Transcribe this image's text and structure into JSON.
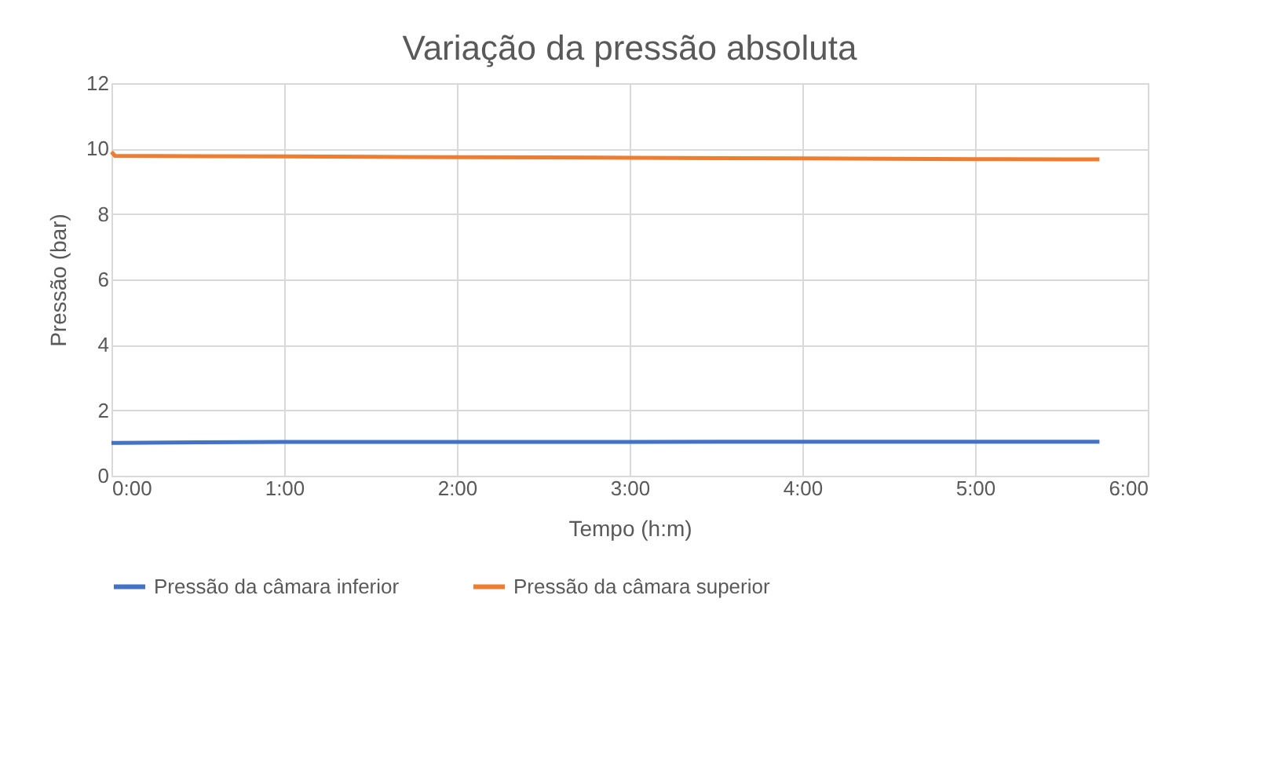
{
  "chart_data": {
    "type": "line",
    "title": "Variação da pressão absoluta",
    "xlabel": "Tempo (h:m)",
    "ylabel": "Pressão (bar)",
    "x": [
      0,
      0.02,
      0.5,
      1,
      1.5,
      2,
      2.5,
      3,
      3.5,
      4,
      4.5,
      5,
      5.5,
      5.72
    ],
    "series": [
      {
        "name": "Pressão da câmara inferior",
        "color": "#4472c4",
        "values": [
          1.0,
          1.0,
          1.02,
          1.03,
          1.03,
          1.03,
          1.03,
          1.03,
          1.04,
          1.04,
          1.04,
          1.04,
          1.04,
          1.04
        ]
      },
      {
        "name": "Pressão da câmara superior",
        "color": "#ed7d31",
        "values": [
          9.9,
          9.78,
          9.77,
          9.76,
          9.75,
          9.74,
          9.73,
          9.72,
          9.71,
          9.7,
          9.69,
          9.68,
          9.67,
          9.67
        ]
      }
    ],
    "xlim": [
      0,
      6
    ],
    "xticks": [
      {
        "value": 0,
        "label": "0:00"
      },
      {
        "value": 1,
        "label": "1:00"
      },
      {
        "value": 2,
        "label": "2:00"
      },
      {
        "value": 3,
        "label": "3:00"
      },
      {
        "value": 4,
        "label": "4:00"
      },
      {
        "value": 5,
        "label": "5:00"
      },
      {
        "value": 6,
        "label": "6:00"
      }
    ],
    "ylim": [
      0,
      12
    ],
    "yticks": [
      0,
      2,
      4,
      6,
      8,
      10,
      12
    ],
    "grid": true,
    "legend": "bottom",
    "marker": "none",
    "line_style": "solid"
  }
}
